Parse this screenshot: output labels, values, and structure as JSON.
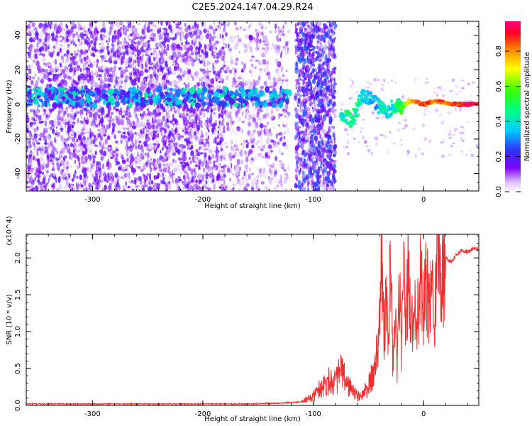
{
  "title": "C2E5.2024.147.04.29.R24",
  "colors": {
    "snr_line": "#f03030",
    "spectrogram_tones": [
      "#e8d8f8",
      "#c8a8f0",
      "#9a5ae8",
      "#6a00e8",
      "#3a20ff",
      "#00c8ff",
      "#00ff80",
      "#ffee00",
      "#ff2040"
    ]
  },
  "chart_data": [
    {
      "type": "heatmap",
      "xlabel": "Height of straight line (km)",
      "ylabel": "Frequency (Hz)",
      "xlim": [
        -360,
        50
      ],
      "ylim": [
        -50,
        48
      ],
      "xticks": [
        -300,
        -200,
        -100,
        0
      ],
      "yticks": [
        -40,
        -20,
        0,
        20,
        40
      ],
      "grid": false,
      "colorbar": {
        "label": "Normalized spectral amplitude",
        "range": [
          0.0,
          0.97
        ],
        "ticks": [
          0.0,
          0.2,
          0.4,
          0.6,
          0.8
        ],
        "tick_labels": [
          "0.0",
          "0.2",
          "0.4",
          "0.6",
          "0.8"
        ]
      },
      "features": [
        {
          "region": "noise",
          "x_range": [
            -360,
            -180
          ],
          "y_range": [
            -50,
            48
          ],
          "amplitude": 0.08
        },
        {
          "region": "noise-sparse",
          "x_range": [
            -180,
            -122
          ],
          "y_range": [
            -50,
            48
          ],
          "amplitude": 0.05
        },
        {
          "region": "noise-dense",
          "x_range": [
            -116,
            -80
          ],
          "y_range": [
            -50,
            48
          ],
          "amplitude": 0.12
        },
        {
          "region": "carrier",
          "x_range": [
            -360,
            -120
          ],
          "frequency": 4,
          "amplitude": 0.3
        },
        {
          "region": "gap",
          "x_range": [
            -122,
            -116
          ],
          "amplitude": 0.0
        },
        {
          "region": "gap",
          "x_range": [
            -80,
            -75
          ],
          "amplitude": 0.0
        }
      ],
      "carrier_track": {
        "x": [
          -75,
          -65,
          -55,
          -45,
          -35,
          -25,
          -20,
          -15,
          -10,
          0,
          10,
          20,
          30,
          40,
          50
        ],
        "y": [
          -5,
          -10,
          5,
          2,
          -5,
          0,
          -2,
          1,
          2,
          0,
          2,
          1,
          0,
          0,
          0
        ],
        "amplitude": [
          0.4,
          0.5,
          0.4,
          0.35,
          0.4,
          0.45,
          0.55,
          0.7,
          0.8,
          0.9,
          0.85,
          0.85,
          0.9,
          0.95,
          0.95
        ]
      }
    },
    {
      "type": "line",
      "xlabel": "Height of straight line (km)",
      "ylabel": "SNR (10 * v/v)",
      "scale_label": "(x10^4)",
      "xlim": [
        -360,
        50
      ],
      "ylim": [
        0,
        2.32
      ],
      "xticks": [
        -300,
        -200,
        -100,
        0
      ],
      "yticks": [
        0.0,
        0.5,
        1.0,
        1.5,
        2.0
      ],
      "ytick_labels": [
        "0.0",
        "0.5",
        "1.0",
        "1.5",
        "2.0"
      ],
      "grid": false,
      "series": [
        {
          "x": [
            -360,
            -300,
            -250,
            -200,
            -160,
            -130,
            -110,
            -100,
            -95,
            -90,
            -85,
            -80,
            -75,
            -70,
            -65,
            -60,
            -55,
            -50,
            -45,
            -42,
            -40,
            -38,
            -36,
            -34,
            -32,
            -30,
            -28,
            -26,
            -24,
            -22,
            -20,
            -18,
            -16,
            -14,
            -12,
            -10,
            -8,
            -6,
            -4,
            -2,
            0,
            2,
            4,
            6,
            8,
            10,
            12,
            14,
            16,
            18,
            20,
            25,
            30,
            35,
            40,
            45,
            50
          ],
          "y": [
            0.02,
            0.02,
            0.02,
            0.02,
            0.02,
            0.03,
            0.05,
            0.12,
            0.22,
            0.28,
            0.35,
            0.3,
            0.48,
            0.3,
            0.22,
            0.12,
            0.15,
            0.25,
            0.45,
            0.8,
            1.3,
            1.95,
            0.9,
            1.5,
            0.7,
            2.08,
            0.6,
            1.2,
            0.5,
            1.6,
            0.7,
            1.8,
            1.0,
            1.9,
            1.2,
            1.05,
            1.5,
            1.35,
            1.2,
            1.85,
            1.2,
            1.55,
            1.45,
            1.3,
            1.7,
            1.35,
            2.05,
            2.3,
            1.6,
            1.85,
            2.0,
            1.95,
            2.05,
            2.1,
            2.08,
            2.12,
            2.13
          ]
        }
      ]
    }
  ]
}
